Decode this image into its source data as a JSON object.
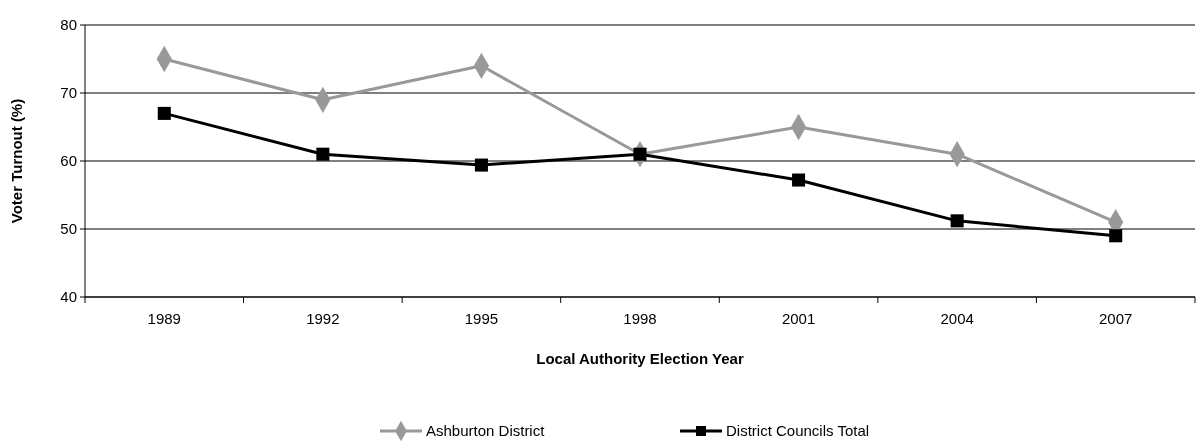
{
  "chart_data": {
    "type": "line",
    "xlabel": "Local Authority Election Year",
    "ylabel": "Voter Turnout (%)",
    "categories": [
      "1989",
      "1992",
      "1995",
      "1998",
      "2001",
      "2004",
      "2007"
    ],
    "series": [
      {
        "name": "Ashburton District",
        "color": "#999999",
        "marker": "diamond",
        "values": [
          75,
          69,
          74,
          61,
          65,
          61,
          51
        ]
      },
      {
        "name": "District Councils Total",
        "color": "#000000",
        "marker": "square",
        "values": [
          67,
          61,
          59.4,
          61,
          57.2,
          51.2,
          49
        ]
      }
    ],
    "ylim": [
      40,
      80
    ],
    "yticks": [
      40,
      50,
      60,
      70,
      80
    ],
    "grid": "y",
    "legend": "bottom",
    "line_style": "solid"
  }
}
